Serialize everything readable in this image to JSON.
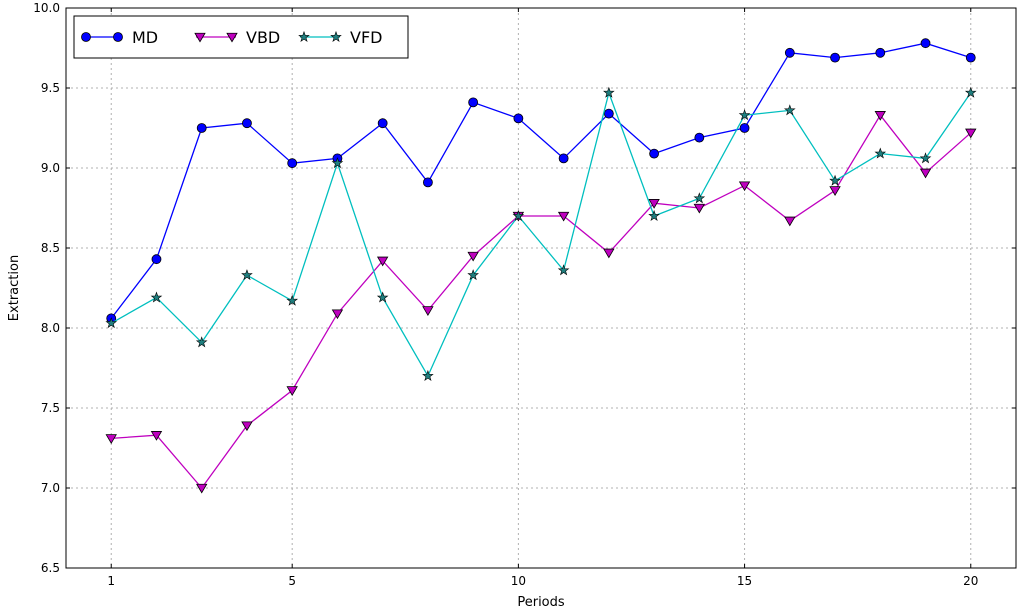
{
  "chart_data": {
    "type": "line",
    "xlabel": "Periods",
    "ylabel": "Extraction",
    "xlim": [
      0,
      21
    ],
    "ylim": [
      6.5,
      10.0
    ],
    "x_ticks": [
      1,
      5,
      10,
      15,
      20
    ],
    "y_ticks": [
      6.5,
      7.0,
      7.5,
      8.0,
      8.5,
      9.0,
      9.5,
      10.0
    ],
    "x_tick_labels": [
      "1",
      "5",
      "10",
      "15",
      "20"
    ],
    "y_tick_labels": [
      "6.5",
      "7.0",
      "7.5",
      "8.0",
      "8.5",
      "9.0",
      "9.5",
      "10.0"
    ],
    "grid": true,
    "legend_position": "top-left",
    "x": [
      1,
      2,
      3,
      4,
      5,
      6,
      7,
      8,
      9,
      10,
      11,
      12,
      13,
      14,
      15,
      16,
      17,
      18,
      19,
      20
    ],
    "series": [
      {
        "name": "MD",
        "color": "#0000ff",
        "marker": "circle",
        "values": [
          8.06,
          8.43,
          9.25,
          9.28,
          9.03,
          9.06,
          9.28,
          8.91,
          9.41,
          9.31,
          9.06,
          9.34,
          9.09,
          9.19,
          9.25,
          9.72,
          9.69,
          9.72,
          9.78,
          9.69
        ]
      },
      {
        "name": "VBD",
        "color": "#bf00bf",
        "marker": "triangle-down",
        "values": [
          7.31,
          7.33,
          7.0,
          7.39,
          7.61,
          8.09,
          8.42,
          8.11,
          8.45,
          8.7,
          8.7,
          8.47,
          8.78,
          8.75,
          8.89,
          8.67,
          8.86,
          9.33,
          8.97,
          9.22
        ]
      },
      {
        "name": "VFD",
        "color": "#00bfbf",
        "marker": "star",
        "values": [
          8.03,
          8.19,
          7.91,
          8.33,
          8.17,
          9.03,
          8.19,
          7.7,
          8.33,
          8.7,
          8.36,
          9.47,
          8.7,
          8.81,
          9.33,
          9.36,
          8.92,
          9.09,
          9.06,
          9.47
        ]
      }
    ]
  }
}
